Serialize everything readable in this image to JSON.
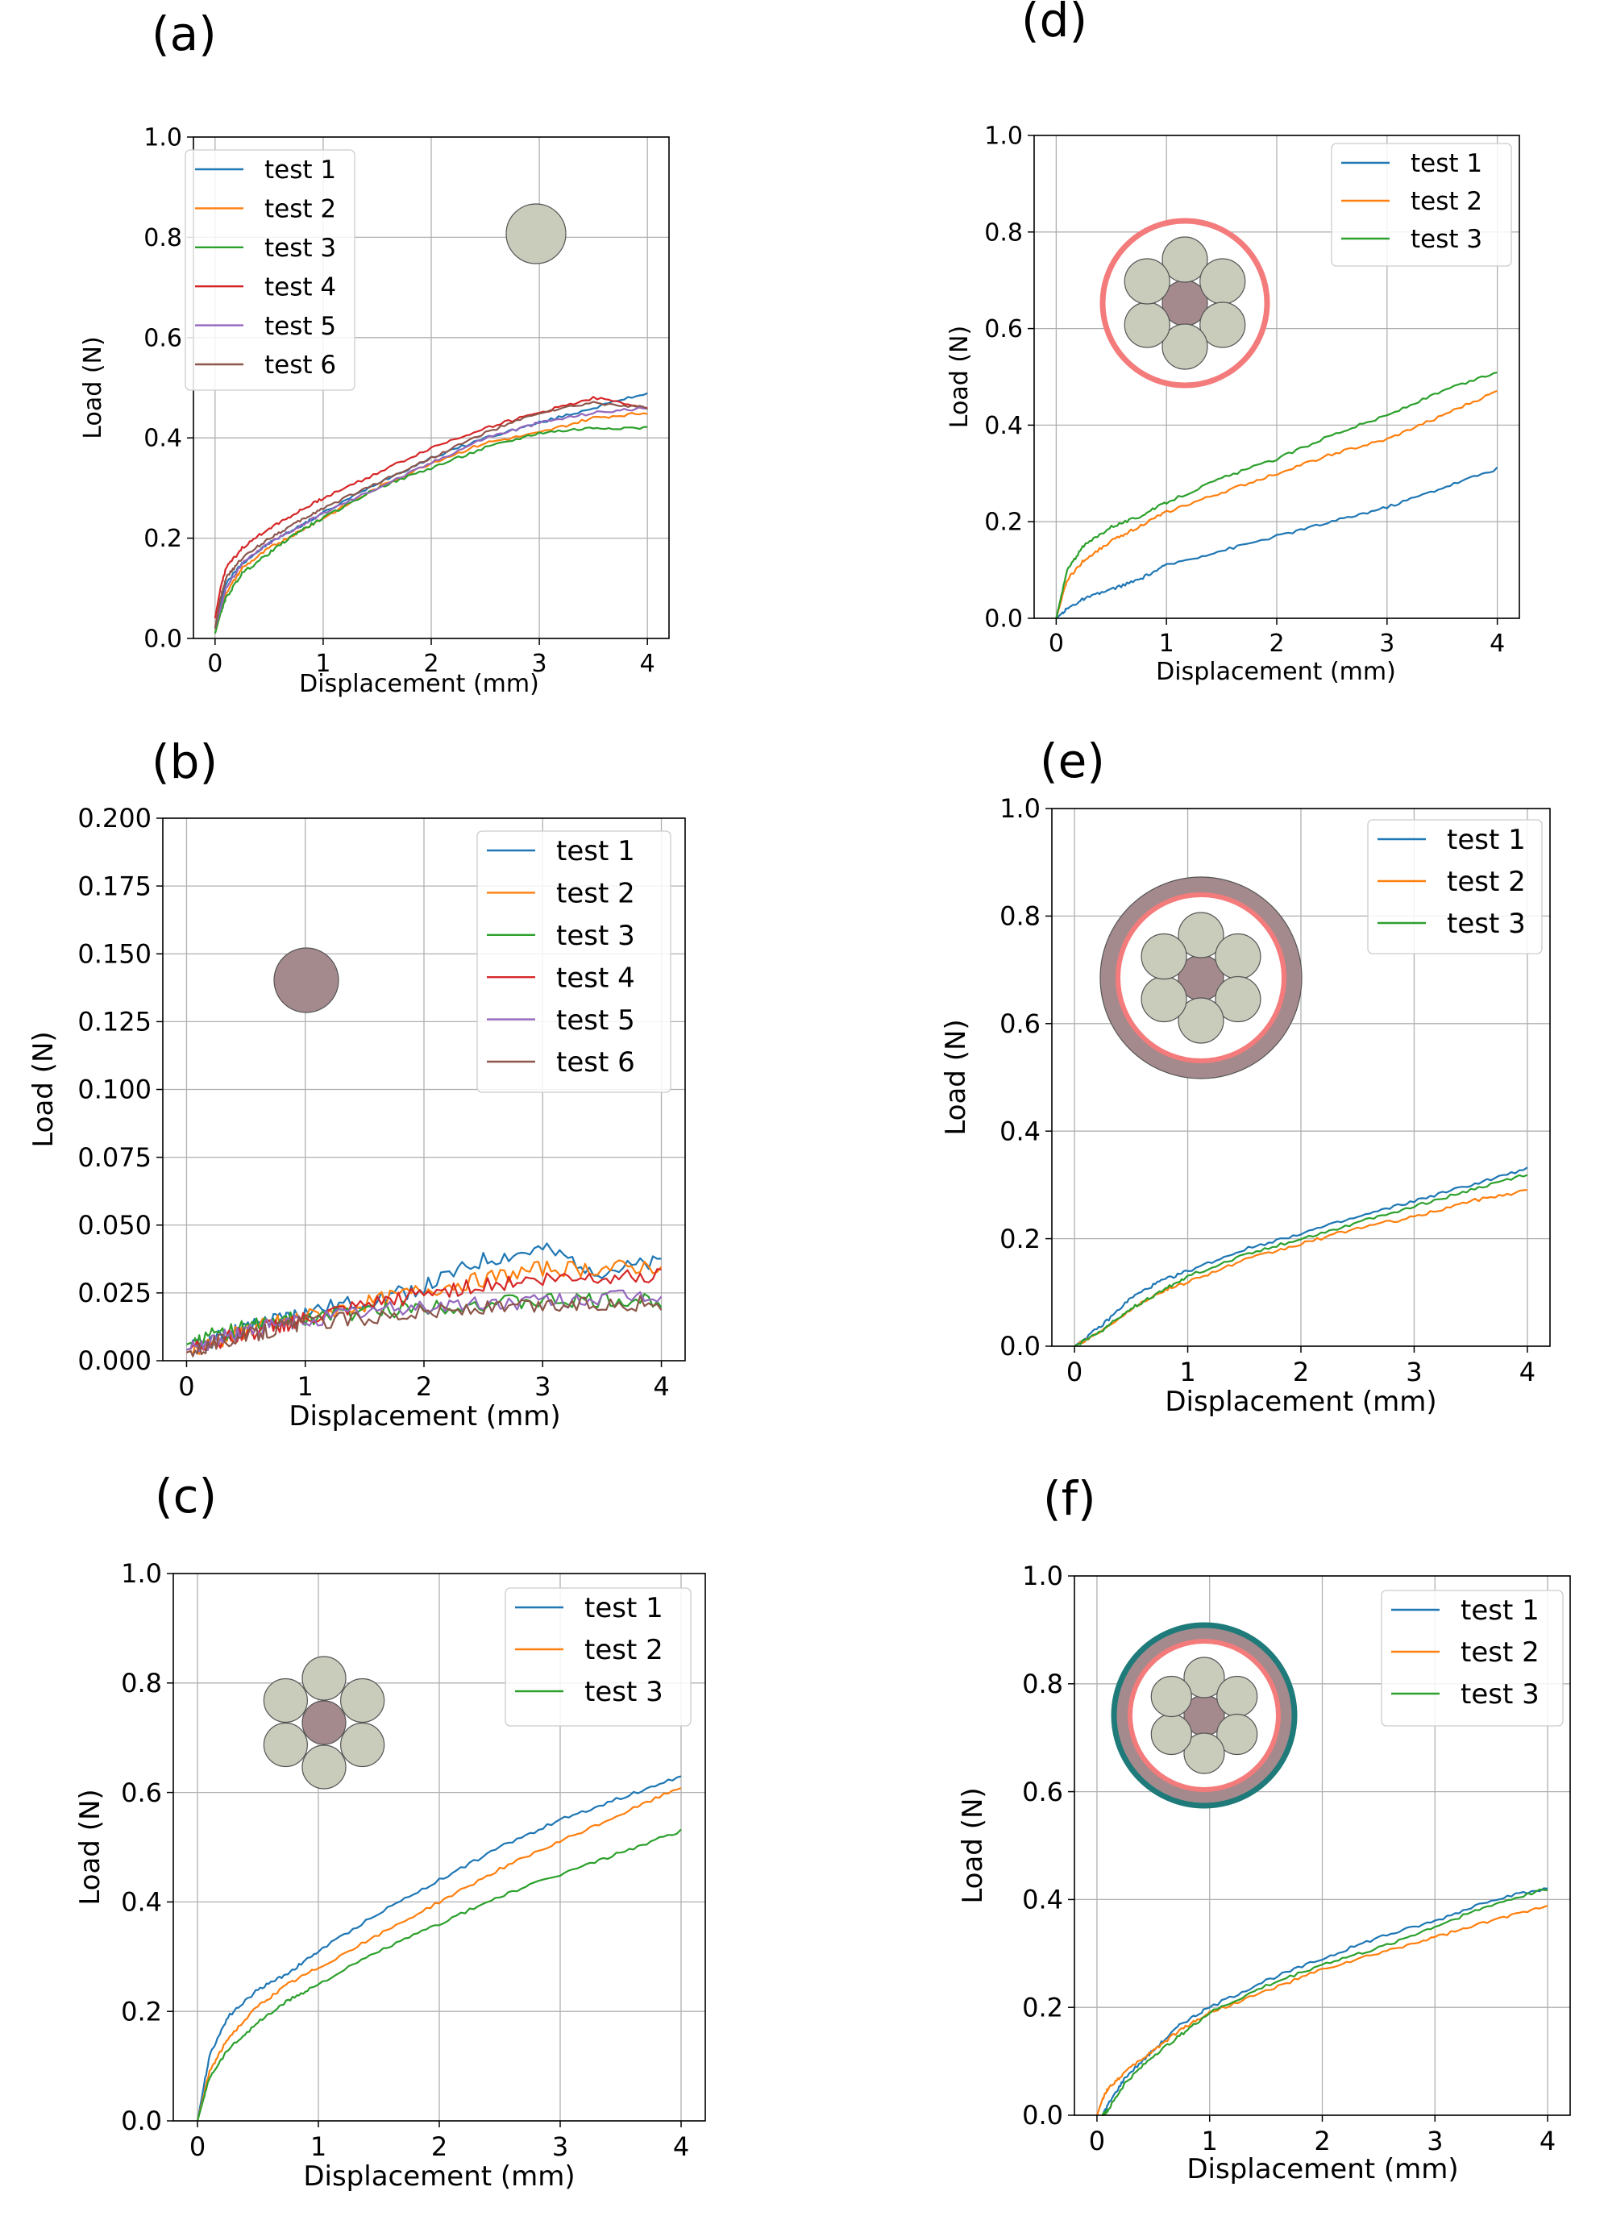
{
  "colors": {
    "test1": "#1f77b4",
    "test2": "#ff7f0e",
    "test3": "#2ca02c",
    "test4": "#d62728",
    "test5": "#9467bd",
    "test6": "#8c564b",
    "grid": "#b0b0b0",
    "fiber_grey": "#c9cbbb",
    "fiber_mauve": "#a58a8d",
    "coat_pink": "#f47b7b",
    "coat_teal": "#1f7a7a"
  },
  "chart_data": [
    {
      "type": "line",
      "panel_label": "(a)",
      "xlabel": "Displacement (mm)",
      "ylabel": "Load (N)",
      "xlim": [
        -0.2,
        4.2
      ],
      "ylim": [
        0,
        1.0
      ],
      "xticks": [
        "0",
        "1",
        "2",
        "3",
        "4"
      ],
      "yticks": [
        "0.0",
        "0.2",
        "0.4",
        "0.6",
        "0.8",
        "1.0"
      ],
      "grid": true,
      "legend": "upper-left",
      "icon": "single-grey-fiber",
      "x": [
        0,
        0.05,
        0.1,
        0.25,
        0.5,
        0.75,
        1.0,
        1.5,
        2.0,
        2.5,
        3.0,
        3.5,
        4.0
      ],
      "series": [
        {
          "name": "test 1",
          "values": [
            0.02,
            0.07,
            0.11,
            0.15,
            0.19,
            0.22,
            0.25,
            0.31,
            0.36,
            0.4,
            0.43,
            0.46,
            0.49
          ]
        },
        {
          "name": "test 2",
          "values": [
            0.01,
            0.05,
            0.09,
            0.14,
            0.18,
            0.21,
            0.24,
            0.3,
            0.35,
            0.39,
            0.41,
            0.44,
            0.45
          ]
        },
        {
          "name": "test 3",
          "values": [
            0.01,
            0.05,
            0.08,
            0.13,
            0.17,
            0.21,
            0.24,
            0.3,
            0.34,
            0.38,
            0.41,
            0.42,
            0.42
          ]
        },
        {
          "name": "test 4",
          "values": [
            0.04,
            0.1,
            0.14,
            0.18,
            0.22,
            0.25,
            0.28,
            0.33,
            0.38,
            0.42,
            0.45,
            0.48,
            0.46
          ]
        },
        {
          "name": "test 5",
          "values": [
            0.02,
            0.06,
            0.1,
            0.15,
            0.19,
            0.22,
            0.25,
            0.3,
            0.35,
            0.4,
            0.43,
            0.45,
            0.46
          ]
        },
        {
          "name": "test 6",
          "values": [
            0.02,
            0.08,
            0.12,
            0.16,
            0.2,
            0.23,
            0.26,
            0.31,
            0.36,
            0.41,
            0.45,
            0.47,
            0.46
          ]
        }
      ]
    },
    {
      "type": "line",
      "panel_label": "(b)",
      "xlabel": "Displacement (mm)",
      "ylabel": "Load (N)",
      "xlim": [
        -0.2,
        4.2
      ],
      "ylim": [
        0,
        0.2
      ],
      "xticks": [
        "0",
        "1",
        "2",
        "3",
        "4"
      ],
      "yticks": [
        "0.000",
        "0.025",
        "0.050",
        "0.075",
        "0.100",
        "0.125",
        "0.150",
        "0.175",
        "0.200"
      ],
      "grid": true,
      "legend": "upper-right",
      "icon": "single-mauve-fiber",
      "x": [
        0,
        0.25,
        0.5,
        0.75,
        1.0,
        1.5,
        2.0,
        2.5,
        3.0,
        3.5,
        4.0
      ],
      "series": [
        {
          "name": "test 1",
          "values": [
            0.004,
            0.008,
            0.012,
            0.015,
            0.018,
            0.022,
            0.027,
            0.037,
            0.041,
            0.033,
            0.036
          ]
        },
        {
          "name": "test 2",
          "values": [
            0.003,
            0.007,
            0.011,
            0.014,
            0.016,
            0.021,
            0.026,
            0.03,
            0.034,
            0.034,
            0.035
          ]
        },
        {
          "name": "test 3",
          "values": [
            0.006,
            0.01,
            0.012,
            0.014,
            0.016,
            0.018,
            0.02,
            0.021,
            0.022,
            0.022,
            0.022
          ]
        },
        {
          "name": "test 4",
          "values": [
            0.004,
            0.007,
            0.01,
            0.013,
            0.015,
            0.02,
            0.025,
            0.028,
            0.03,
            0.031,
            0.032
          ]
        },
        {
          "name": "test 5",
          "values": [
            0.004,
            0.008,
            0.011,
            0.013,
            0.015,
            0.018,
            0.02,
            0.021,
            0.022,
            0.023,
            0.024
          ]
        },
        {
          "name": "test 6",
          "values": [
            0.003,
            0.007,
            0.009,
            0.012,
            0.014,
            0.016,
            0.018,
            0.019,
            0.02,
            0.021,
            0.021
          ]
        }
      ]
    },
    {
      "type": "line",
      "panel_label": "(c)",
      "xlabel": "Displacement (mm)",
      "ylabel": "Load (N)",
      "xlim": [
        -0.2,
        4.2
      ],
      "ylim": [
        0,
        1.0
      ],
      "xticks": [
        "0",
        "1",
        "2",
        "3",
        "4"
      ],
      "yticks": [
        "0.0",
        "0.2",
        "0.4",
        "0.6",
        "0.8",
        "1.0"
      ],
      "grid": true,
      "legend": "upper-right",
      "icon": "six-fiber-bundle",
      "x": [
        0,
        0.1,
        0.25,
        0.5,
        0.75,
        1.0,
        1.5,
        2.0,
        2.5,
        3.0,
        3.5,
        4.0
      ],
      "series": [
        {
          "name": "test 1",
          "values": [
            0.0,
            0.12,
            0.19,
            0.24,
            0.27,
            0.31,
            0.38,
            0.44,
            0.5,
            0.55,
            0.59,
            0.63
          ]
        },
        {
          "name": "test 2",
          "values": [
            0.0,
            0.09,
            0.15,
            0.21,
            0.25,
            0.28,
            0.34,
            0.4,
            0.46,
            0.51,
            0.56,
            0.61
          ]
        },
        {
          "name": "test 3",
          "values": [
            0.0,
            0.08,
            0.13,
            0.18,
            0.22,
            0.25,
            0.31,
            0.36,
            0.41,
            0.45,
            0.49,
            0.53
          ]
        }
      ]
    },
    {
      "type": "line",
      "panel_label": "(d)",
      "xlabel": "Displacement (mm)",
      "ylabel": "Load (N)",
      "xlim": [
        -0.2,
        4.2
      ],
      "ylim": [
        0,
        1.0
      ],
      "xticks": [
        "0",
        "1",
        "2",
        "3",
        "4"
      ],
      "yticks": [
        "0.0",
        "0.2",
        "0.4",
        "0.6",
        "0.8",
        "1.0"
      ],
      "grid": true,
      "legend": "upper-right",
      "icon": "bundle-pink-ring",
      "x": [
        0,
        0.1,
        0.25,
        0.5,
        0.75,
        1.0,
        1.5,
        2.0,
        2.5,
        3.0,
        3.5,
        4.0
      ],
      "series": [
        {
          "name": "test 1",
          "values": [
            0.0,
            0.02,
            0.04,
            0.06,
            0.08,
            0.11,
            0.14,
            0.17,
            0.2,
            0.23,
            0.27,
            0.31
          ]
        },
        {
          "name": "test 2",
          "values": [
            0.0,
            0.08,
            0.12,
            0.16,
            0.19,
            0.22,
            0.26,
            0.3,
            0.34,
            0.37,
            0.42,
            0.47
          ]
        },
        {
          "name": "test 3",
          "values": [
            0.0,
            0.1,
            0.15,
            0.19,
            0.21,
            0.24,
            0.29,
            0.33,
            0.38,
            0.42,
            0.47,
            0.51
          ]
        }
      ]
    },
    {
      "type": "line",
      "panel_label": "(e)",
      "xlabel": "Displacement (mm)",
      "ylabel": "Load (N)",
      "xlim": [
        -0.2,
        4.2
      ],
      "ylim": [
        0,
        1.0
      ],
      "xticks": [
        "0",
        "1",
        "2",
        "3",
        "4"
      ],
      "yticks": [
        "0.0",
        "0.2",
        "0.4",
        "0.6",
        "0.8",
        "1.0"
      ],
      "grid": true,
      "legend": "upper-right",
      "icon": "bundle-pink-ring-mauve-sheath",
      "x": [
        0,
        0.25,
        0.5,
        0.75,
        1.0,
        1.5,
        2.0,
        2.5,
        3.0,
        3.5,
        4.0
      ],
      "series": [
        {
          "name": "test 1",
          "values": [
            0.0,
            0.04,
            0.09,
            0.12,
            0.14,
            0.18,
            0.21,
            0.24,
            0.27,
            0.3,
            0.33
          ]
        },
        {
          "name": "test 2",
          "values": [
            0.0,
            0.03,
            0.07,
            0.1,
            0.12,
            0.16,
            0.19,
            0.22,
            0.24,
            0.27,
            0.29
          ]
        },
        {
          "name": "test 3",
          "values": [
            0.0,
            0.03,
            0.07,
            0.1,
            0.13,
            0.17,
            0.2,
            0.23,
            0.26,
            0.29,
            0.32
          ]
        }
      ]
    },
    {
      "type": "line",
      "panel_label": "(f)",
      "xlabel": "Displacement (mm)",
      "ylabel": "Load (N)",
      "xlim": [
        -0.2,
        4.2
      ],
      "ylim": [
        0,
        1.0
      ],
      "xticks": [
        "0",
        "1",
        "2",
        "3",
        "4"
      ],
      "yticks": [
        "0.0",
        "0.2",
        "0.4",
        "0.6",
        "0.8",
        "1.0"
      ],
      "grid": true,
      "legend": "upper-right",
      "icon": "bundle-pink-mauve-teal-rings",
      "x": [
        0.0,
        0.05,
        0.1,
        0.25,
        0.5,
        0.75,
        1.0,
        1.5,
        2.0,
        2.5,
        3.0,
        3.5,
        4.0
      ],
      "series": [
        {
          "name": "test 1",
          "values": [
            null,
            0.0,
            0.02,
            0.07,
            0.12,
            0.17,
            0.2,
            0.25,
            0.29,
            0.33,
            0.36,
            0.4,
            0.42
          ]
        },
        {
          "name": "test 2",
          "values": [
            0.0,
            0.03,
            0.05,
            0.08,
            0.12,
            0.16,
            0.19,
            0.23,
            0.27,
            0.3,
            0.33,
            0.36,
            0.39
          ]
        },
        {
          "name": "test 3",
          "values": [
            null,
            0.0,
            0.01,
            0.06,
            0.11,
            0.15,
            0.19,
            0.24,
            0.28,
            0.31,
            0.35,
            0.39,
            0.42
          ]
        }
      ]
    }
  ]
}
